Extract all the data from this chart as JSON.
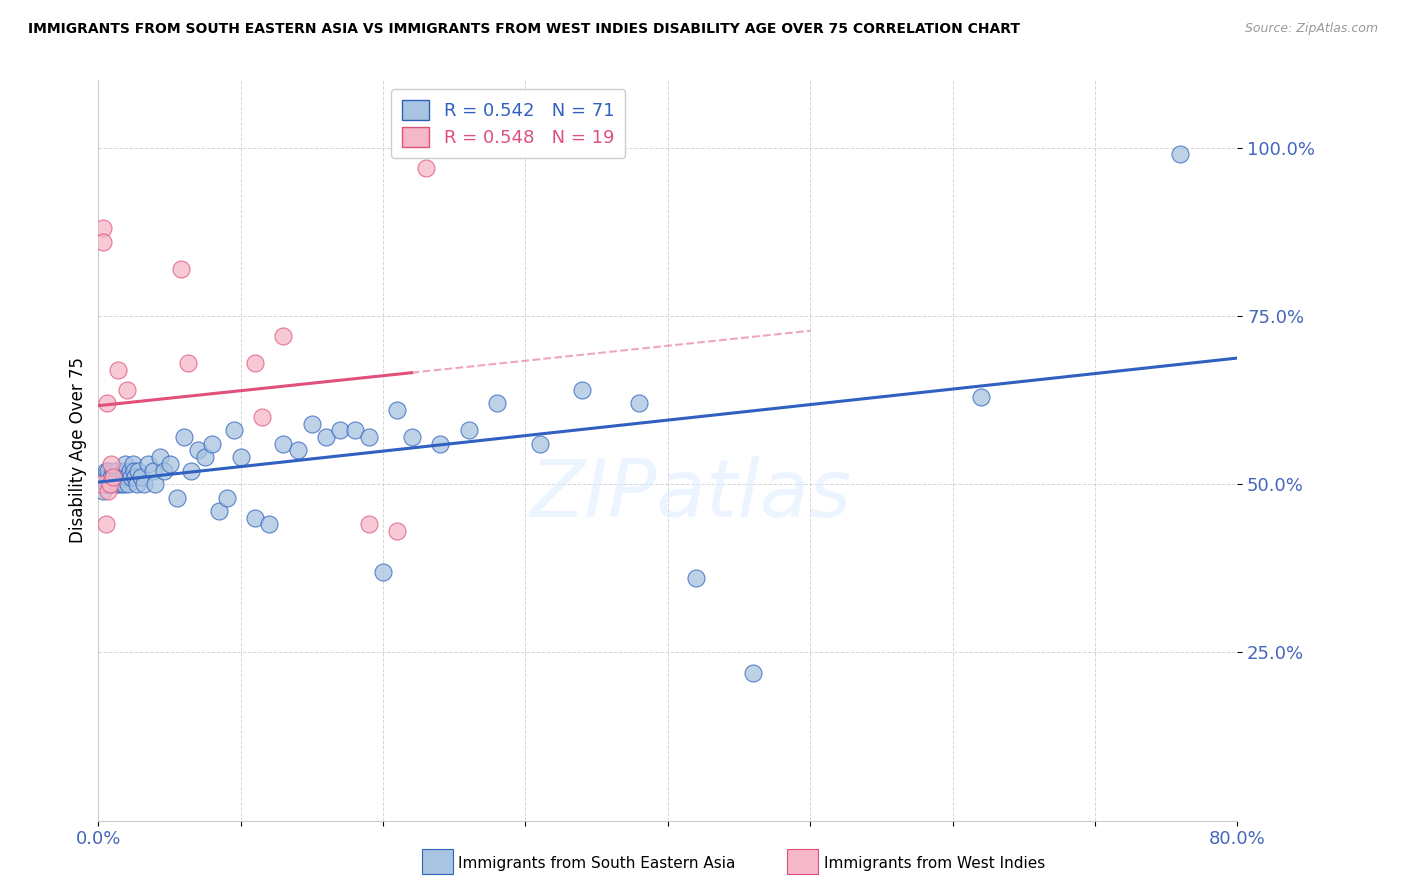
{
  "title": "IMMIGRANTS FROM SOUTH EASTERN ASIA VS IMMIGRANTS FROM WEST INDIES DISABILITY AGE OVER 75 CORRELATION CHART",
  "source": "Source: ZipAtlas.com",
  "ylabel": "Disability Age Over 75",
  "legend_label_blue": "Immigrants from South Eastern Asia",
  "legend_label_pink": "Immigrants from West Indies",
  "R_blue": 0.542,
  "N_blue": 71,
  "R_pink": 0.548,
  "N_pink": 19,
  "blue_color": "#a8c4e0",
  "pink_color": "#f4b8c8",
  "line_blue": "#3060c0",
  "line_pink": "#e0507a",
  "axis_label_color": "#4466bb",
  "xlim": [
    0.0,
    0.8
  ],
  "ylim": [
    0.0,
    1.1
  ],
  "yticks": [
    0.25,
    0.5,
    0.75,
    1.0
  ],
  "ytick_labels": [
    "25.0%",
    "50.0%",
    "75.0%",
    "100.0%"
  ],
  "xtick_labels_show": [
    "0.0%",
    "80.0%"
  ],
  "blue_x": [
    0.003,
    0.004,
    0.005,
    0.005,
    0.006,
    0.007,
    0.007,
    0.008,
    0.009,
    0.01,
    0.01,
    0.011,
    0.012,
    0.013,
    0.013,
    0.014,
    0.015,
    0.016,
    0.017,
    0.018,
    0.018,
    0.019,
    0.02,
    0.021,
    0.022,
    0.023,
    0.024,
    0.025,
    0.026,
    0.027,
    0.028,
    0.03,
    0.032,
    0.035,
    0.038,
    0.04,
    0.043,
    0.046,
    0.05,
    0.055,
    0.06,
    0.065,
    0.07,
    0.075,
    0.08,
    0.085,
    0.09,
    0.095,
    0.1,
    0.11,
    0.12,
    0.13,
    0.14,
    0.15,
    0.16,
    0.17,
    0.18,
    0.19,
    0.2,
    0.21,
    0.22,
    0.24,
    0.26,
    0.28,
    0.31,
    0.34,
    0.38,
    0.42,
    0.46,
    0.62,
    0.76
  ],
  "blue_y": [
    0.49,
    0.51,
    0.5,
    0.52,
    0.5,
    0.51,
    0.52,
    0.5,
    0.51,
    0.5,
    0.52,
    0.51,
    0.5,
    0.52,
    0.51,
    0.5,
    0.51,
    0.5,
    0.52,
    0.51,
    0.5,
    0.53,
    0.51,
    0.5,
    0.52,
    0.51,
    0.53,
    0.52,
    0.51,
    0.5,
    0.52,
    0.51,
    0.5,
    0.53,
    0.52,
    0.5,
    0.54,
    0.52,
    0.53,
    0.48,
    0.57,
    0.52,
    0.55,
    0.54,
    0.56,
    0.46,
    0.48,
    0.58,
    0.54,
    0.45,
    0.44,
    0.56,
    0.55,
    0.59,
    0.57,
    0.58,
    0.58,
    0.57,
    0.37,
    0.61,
    0.57,
    0.56,
    0.58,
    0.62,
    0.56,
    0.64,
    0.62,
    0.36,
    0.22,
    0.63,
    0.99
  ],
  "pink_x": [
    0.002,
    0.003,
    0.003,
    0.005,
    0.006,
    0.007,
    0.008,
    0.009,
    0.01,
    0.014,
    0.02,
    0.058,
    0.063,
    0.11,
    0.115,
    0.13,
    0.19,
    0.21,
    0.23
  ],
  "pink_y": [
    0.5,
    0.88,
    0.86,
    0.44,
    0.62,
    0.49,
    0.5,
    0.53,
    0.51,
    0.67,
    0.64,
    0.82,
    0.68,
    0.68,
    0.6,
    0.72,
    0.44,
    0.43,
    0.97
  ],
  "pink_line_solid_end": 0.22,
  "watermark": "ZIPatlas",
  "background_color": "#ffffff",
  "grid_color": "#cccccc"
}
